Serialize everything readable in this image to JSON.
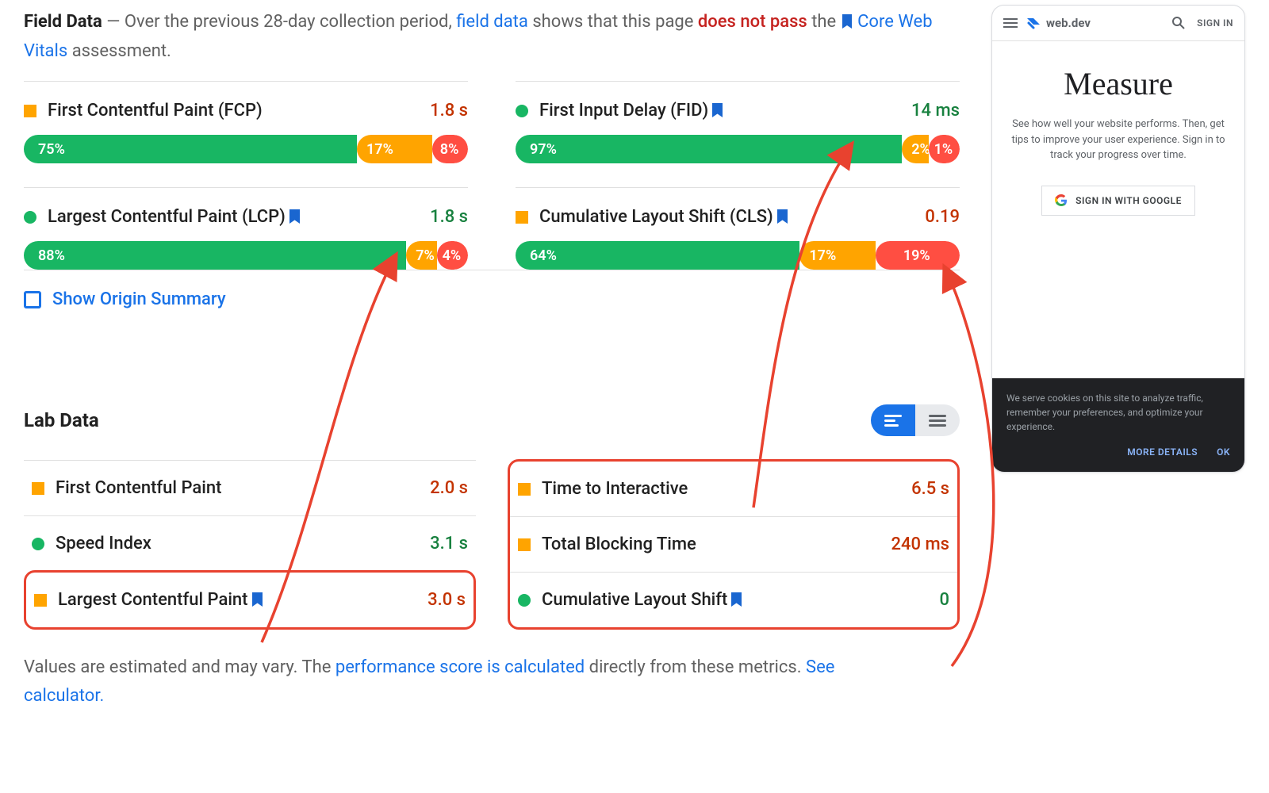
{
  "colors": {
    "green": "#18b663",
    "orange": "#ffa400",
    "red": "#ff4e42",
    "text_green": "#18813f",
    "text_orange": "#c33300",
    "text_dark": "#212121",
    "link": "#1a73e8",
    "fail": "#c5221f",
    "arrow": "#e8422f",
    "bookmark": "#1a66d0"
  },
  "header": {
    "title": "Field Data",
    "dash": " — ",
    "pre": "Over the previous 28-day collection period, ",
    "link1": "field data",
    "mid": " shows that this page ",
    "fail": "does not pass",
    "post": " the ",
    "link2": "Core Web Vitals",
    "end": " assessment."
  },
  "field_metrics": [
    {
      "shape": "square",
      "shape_color": "#ffa400",
      "name": "First Contentful Paint (FCP)",
      "bookmark": false,
      "value": "1.8 s",
      "value_color": "#c33300",
      "dist": {
        "g": 75,
        "o": 17,
        "r": 8
      }
    },
    {
      "shape": "circle",
      "shape_color": "#18b663",
      "name": "First Input Delay (FID)",
      "bookmark": true,
      "value": "14 ms",
      "value_color": "#18813f",
      "dist": {
        "g": 97,
        "o": 2,
        "r": 1
      }
    },
    {
      "shape": "circle",
      "shape_color": "#18b663",
      "name": "Largest Contentful Paint (LCP)",
      "bookmark": true,
      "value": "1.8 s",
      "value_color": "#18813f",
      "dist": {
        "g": 88,
        "o": 7,
        "r": 4
      }
    },
    {
      "shape": "square",
      "shape_color": "#ffa400",
      "name": "Cumulative Layout Shift (CLS)",
      "bookmark": true,
      "value": "0.19",
      "value_color": "#c33300",
      "dist": {
        "g": 64,
        "o": 17,
        "r": 19
      }
    }
  ],
  "origin": {
    "label": "Show Origin Summary"
  },
  "lab": {
    "title": "Lab Data",
    "left": [
      {
        "shape": "square",
        "shape_color": "#ffa400",
        "name": "First Contentful Paint",
        "bookmark": false,
        "value": "2.0 s",
        "value_color": "#c33300",
        "hl": false
      },
      {
        "shape": "circle",
        "shape_color": "#18b663",
        "name": "Speed Index",
        "bookmark": false,
        "value": "3.1 s",
        "value_color": "#18813f",
        "hl": false
      },
      {
        "shape": "square",
        "shape_color": "#ffa400",
        "name": "Largest Contentful Paint",
        "bookmark": true,
        "value": "3.0 s",
        "value_color": "#c33300",
        "hl": true
      }
    ],
    "right": [
      {
        "shape": "square",
        "shape_color": "#ffa400",
        "name": "Time to Interactive",
        "bookmark": false,
        "value": "6.5 s",
        "value_color": "#c33300",
        "hl": true
      },
      {
        "shape": "square",
        "shape_color": "#ffa400",
        "name": "Total Blocking Time",
        "bookmark": false,
        "value": "240 ms",
        "value_color": "#c33300",
        "hl": true
      },
      {
        "shape": "circle",
        "shape_color": "#18b663",
        "name": "Cumulative Layout Shift",
        "bookmark": true,
        "value": "0",
        "value_color": "#18813f",
        "hl": true
      }
    ]
  },
  "footer": {
    "t1": "Values are estimated and may vary. The ",
    "l1": "performance score is calculated",
    "t2": " directly from these metrics. ",
    "l2": "See calculator."
  },
  "phone": {
    "brand": "web.dev",
    "signin": "SIGN IN",
    "h1": "Measure",
    "desc": "See how well your website performs. Then, get tips to improve your user experience. Sign in to track your progress over time.",
    "gbtn": "SIGN IN WITH GOOGLE",
    "cookie": "We serve cookies on this site to analyze traffic, remember your preferences, and optimize your experience.",
    "more": "MORE DETAILS",
    "ok": "OK"
  }
}
